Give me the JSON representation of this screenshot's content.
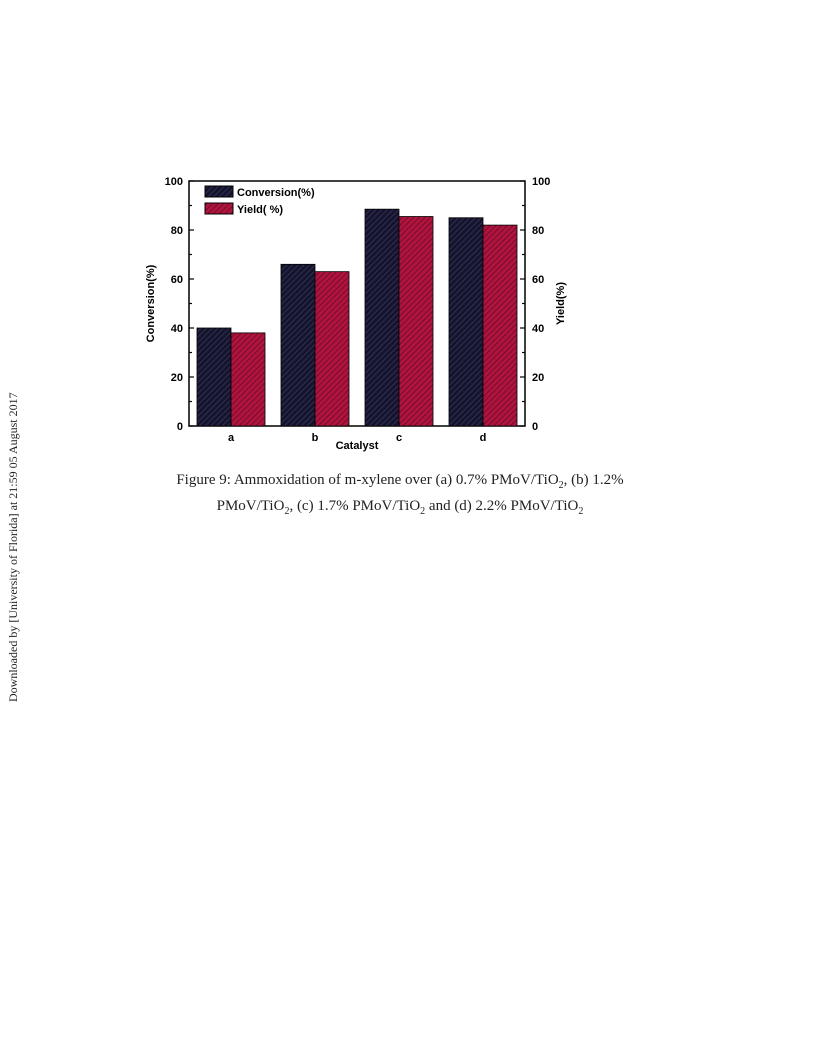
{
  "sidebar_note": "Downloaded by [University of Florida] at 21:59 05 August 2017",
  "caption": {
    "label": "Figure 9:",
    "parts": [
      {
        "text": " Ammoxidation of m-xylene over (a) 0.7% PMoV/TiO"
      },
      {
        "sub": "2"
      },
      {
        "text": ", (b) 1.2%"
      },
      {
        "br": true
      },
      {
        "text": "PMoV/TiO"
      },
      {
        "sub": "2"
      },
      {
        "text": ", (c) 1.7% PMoV/TiO"
      },
      {
        "sub": "2"
      },
      {
        "text": " and (d) 2.2% PMoV/TiO"
      },
      {
        "sub": "2"
      }
    ]
  },
  "chart_data": {
    "type": "bar",
    "title": "",
    "xlabel": "Catalyst",
    "ylabel": "Conversion(%)",
    "y2label": "Yield(%)",
    "categories": [
      "a",
      "b",
      "c",
      "d"
    ],
    "ylim": [
      0,
      100
    ],
    "yticks": [
      0,
      20,
      40,
      60,
      80,
      100
    ],
    "y2ticks": [
      0,
      20,
      40,
      60,
      80,
      100
    ],
    "grid": false,
    "legend_position": "top-left",
    "series": [
      {
        "name": "Conversion(%)",
        "values": [
          40,
          66,
          88.5,
          85
        ],
        "color": "#14142e",
        "hatch": "#3c3c5a"
      },
      {
        "name": "Yield( %)",
        "values": [
          38,
          63,
          85.5,
          82
        ],
        "color": "#b0143e",
        "hatch": "#5a0a22"
      }
    ]
  }
}
